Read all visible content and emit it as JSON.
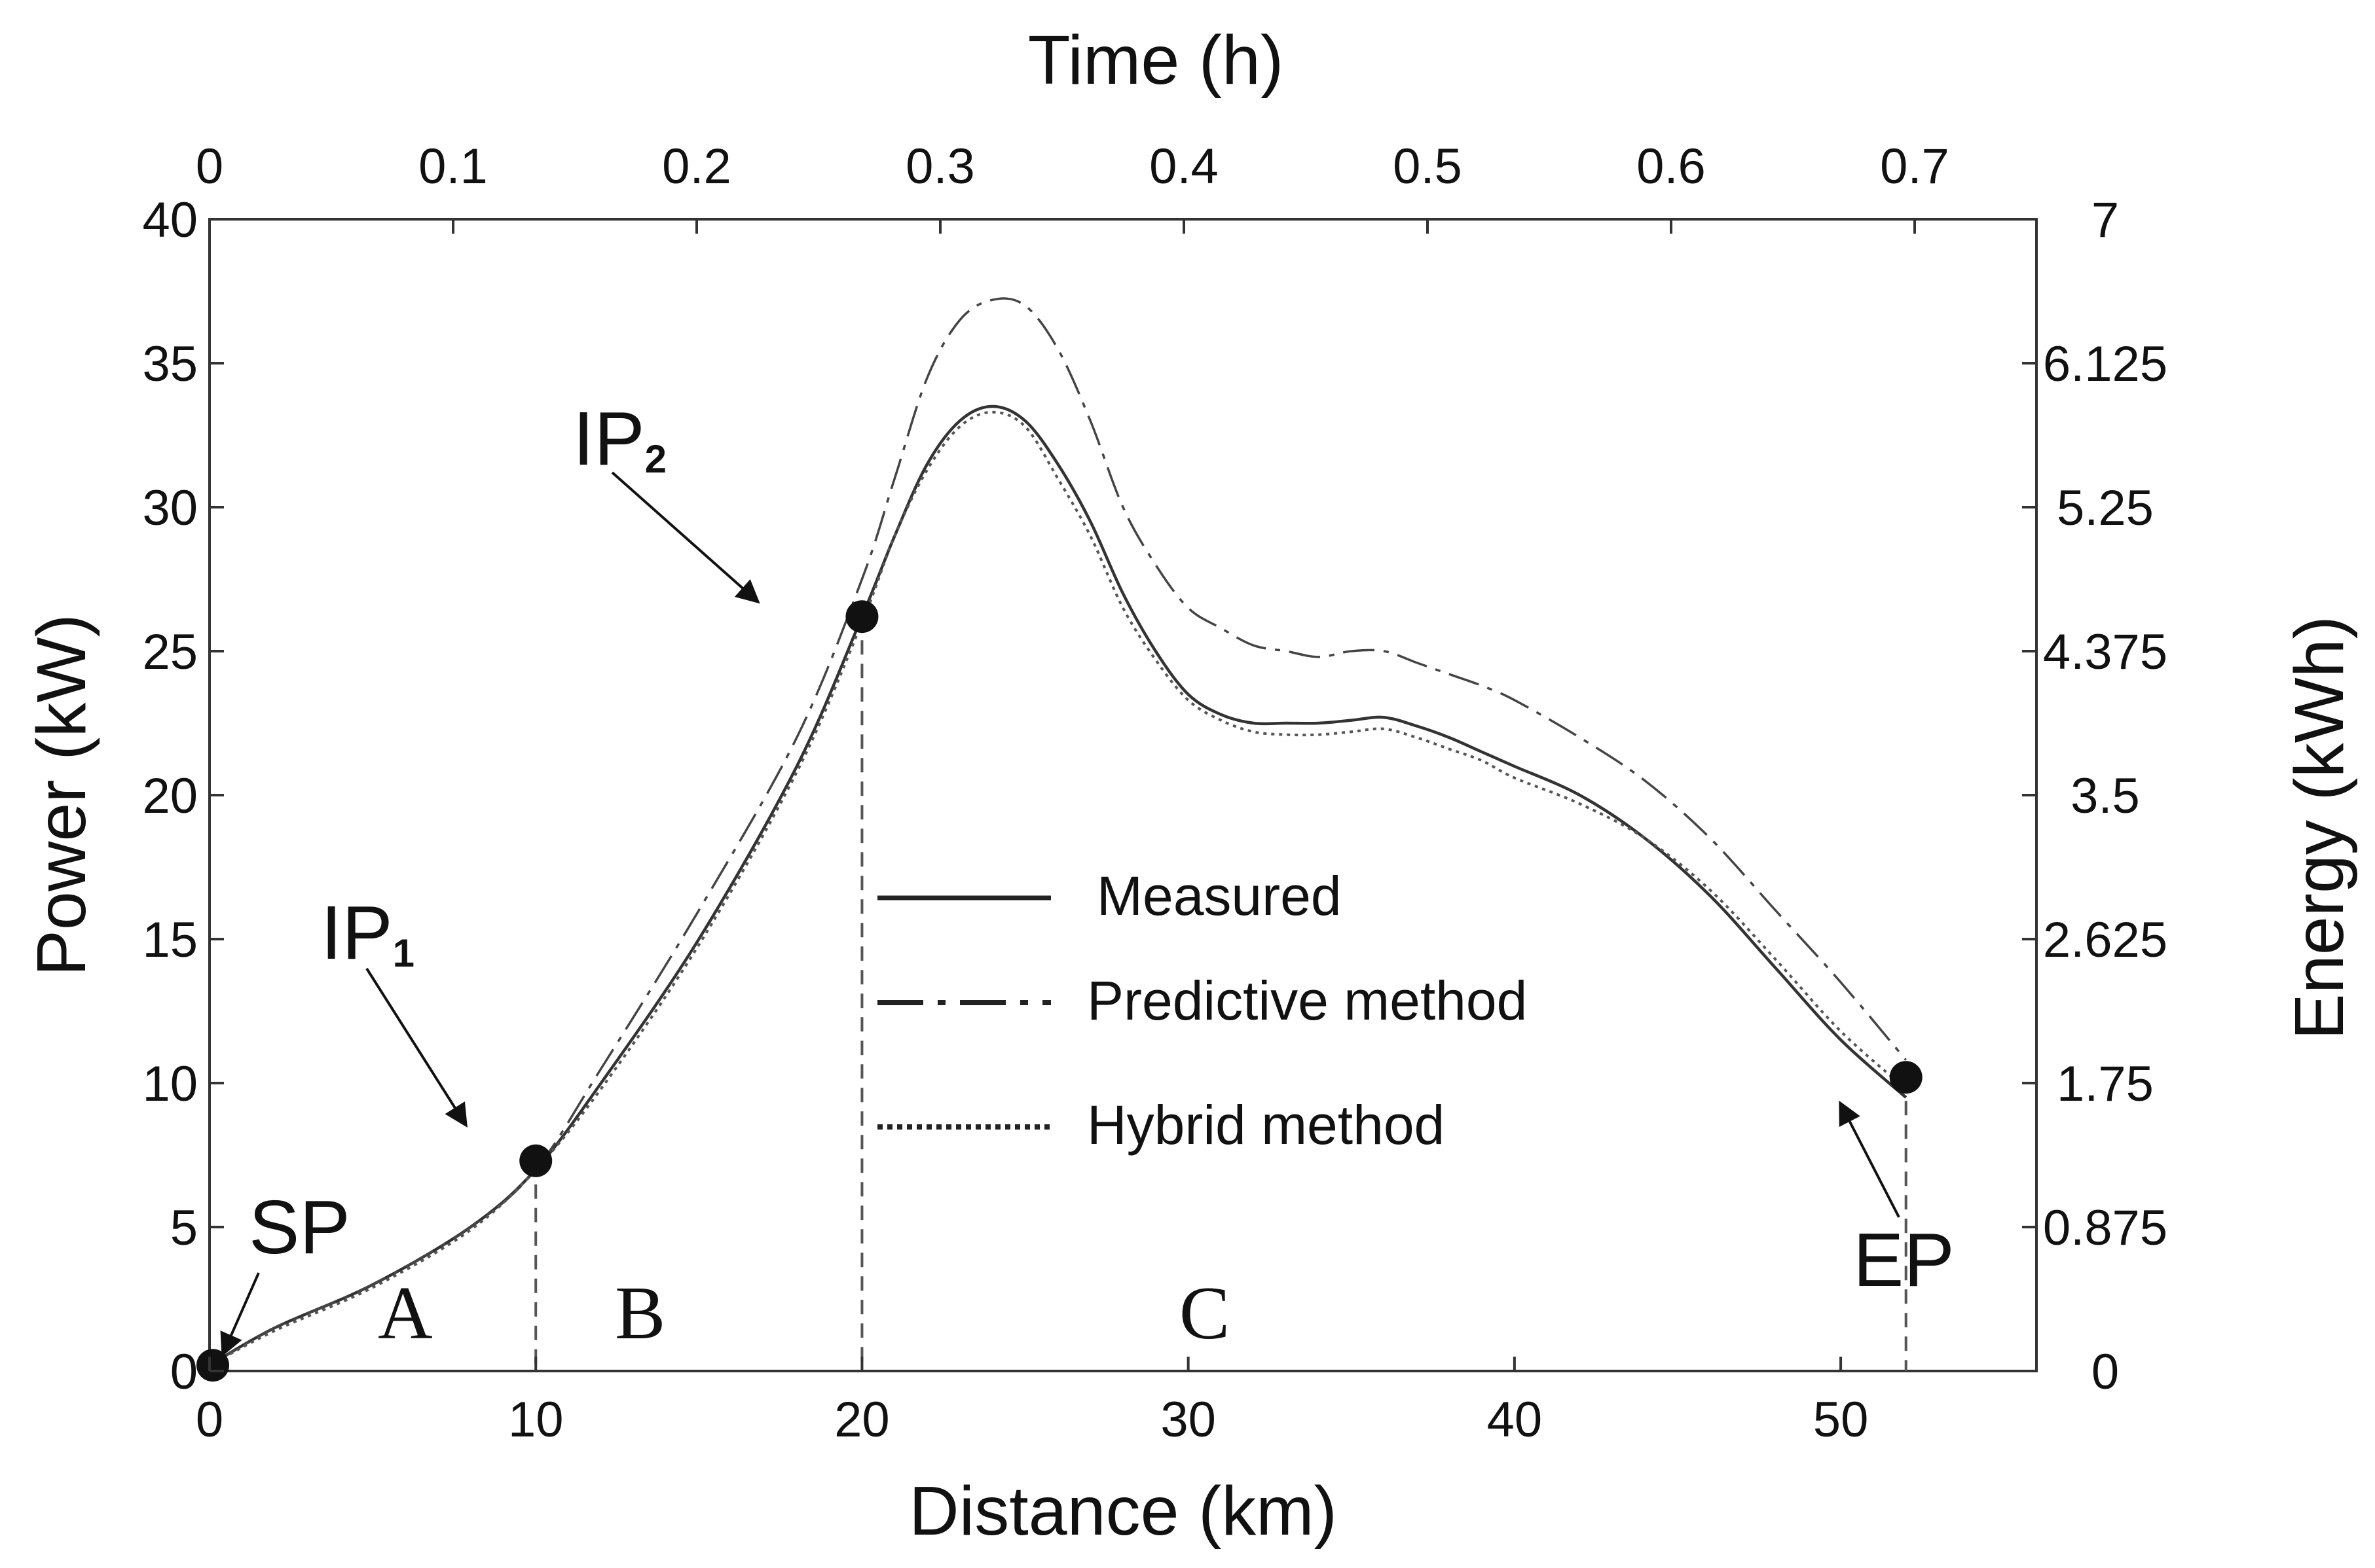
{
  "chart_data": {
    "type": "line",
    "title": "",
    "xlabel": "Distance (km)",
    "x2label": "Time (h)",
    "ylabel": "Power (kW)",
    "y2label": "Energy (kWh)",
    "xlim": [
      0,
      56
    ],
    "ylim": [
      0,
      40
    ],
    "x2lim": [
      0,
      0.75
    ],
    "y2lim": [
      0,
      7
    ],
    "xticks": [
      0,
      10,
      20,
      30,
      40,
      50
    ],
    "x2ticks": [
      "0",
      "0.1",
      "0.2",
      "0.3",
      "0.4",
      "0.5",
      "0.6",
      "0.7"
    ],
    "yticks": [
      0,
      5,
      10,
      15,
      20,
      25,
      30,
      35,
      40
    ],
    "y2ticks": [
      "0",
      "0.875",
      "1.75",
      "2.625",
      "3.5",
      "4.375",
      "5.25",
      "6.125",
      "7"
    ],
    "series": [
      {
        "name": "Measured",
        "style": "solid",
        "x": [
          0,
          2,
          5,
          8,
          10,
          12,
          15,
          18,
          20,
          21,
          22,
          23,
          24,
          25,
          26,
          27,
          28,
          29,
          30,
          31,
          32,
          33,
          34,
          35,
          36,
          37,
          38,
          39,
          40,
          42,
          44,
          46,
          48,
          50,
          52
        ],
        "y": [
          0.2,
          1.5,
          3,
          5,
          7,
          10,
          15,
          21,
          26.2,
          29,
          31.5,
          33,
          33.5,
          33,
          31.5,
          29.5,
          27,
          25,
          23.5,
          22.8,
          22.5,
          22.5,
          22.5,
          22.6,
          22.7,
          22.4,
          22,
          21.5,
          21,
          20,
          18.5,
          16.5,
          14,
          11.5,
          9.5
        ]
      },
      {
        "name": "Predictive method",
        "style": "dashdot",
        "x": [
          0,
          2,
          5,
          8,
          10,
          12,
          15,
          18,
          20,
          21,
          22,
          23,
          24,
          25,
          26,
          27,
          28,
          29,
          30,
          31,
          32,
          33,
          34,
          35,
          36,
          37,
          38,
          39,
          40,
          42,
          44,
          46,
          48,
          50,
          52
        ],
        "y": [
          0.2,
          1.5,
          3,
          5,
          7,
          10.5,
          16,
          22,
          27.5,
          31,
          34.5,
          36.5,
          37.2,
          37,
          35.5,
          33,
          30,
          28,
          26.5,
          25.8,
          25.2,
          25,
          24.8,
          25,
          25,
          24.6,
          24.2,
          23.8,
          23.3,
          22,
          20.5,
          18.5,
          16,
          13.5,
          10.8
        ]
      },
      {
        "name": "Hybrid method",
        "style": "dotted",
        "x": [
          0,
          2,
          5,
          8,
          10,
          12,
          15,
          18,
          20,
          21,
          22,
          23,
          24,
          25,
          26,
          27,
          28,
          29,
          30,
          31,
          32,
          33,
          34,
          35,
          36,
          37,
          38,
          39,
          40,
          42,
          44,
          46,
          48,
          50,
          52
        ],
        "y": [
          0.2,
          1.4,
          2.9,
          4.9,
          7,
          9.8,
          14.8,
          20.8,
          26,
          29,
          31.3,
          32.8,
          33.3,
          32.8,
          31,
          29,
          26.5,
          24.7,
          23.3,
          22.6,
          22.2,
          22.1,
          22.1,
          22.2,
          22.3,
          22,
          21.6,
          21.2,
          20.6,
          19.7,
          18.5,
          16.7,
          14.3,
          11.8,
          9.8
        ]
      }
    ],
    "points": [
      {
        "label": "SP",
        "sub": "",
        "x": 0.1,
        "y": 0.2
      },
      {
        "label": "IP",
        "sub": "1",
        "x": 10,
        "y": 7.3
      },
      {
        "label": "IP",
        "sub": "2",
        "x": 20,
        "y": 26.2
      },
      {
        "label": "EP",
        "sub": "",
        "x": 52,
        "y": 10.2
      }
    ],
    "regions": [
      {
        "label": "A",
        "x": 6
      },
      {
        "label": "B",
        "x": 13.2
      },
      {
        "label": "C",
        "x": 30.5
      }
    ],
    "dividers": [
      10,
      20,
      52
    ],
    "legend": {
      "placement": "center",
      "entries": [
        "Measured",
        "Predictive method",
        "Hybrid method"
      ]
    }
  }
}
